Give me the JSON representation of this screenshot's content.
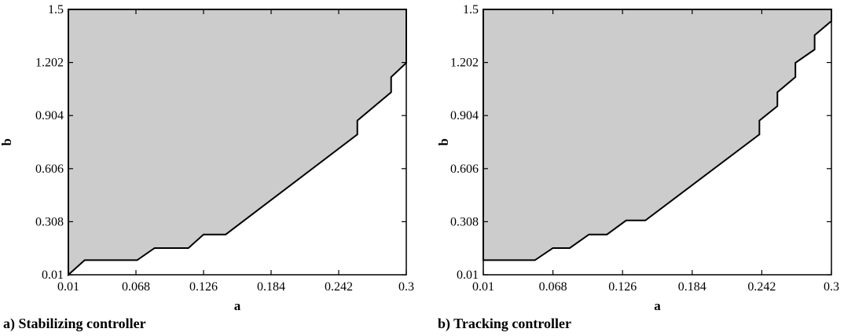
{
  "chart_data": [
    {
      "type": "area",
      "caption": "a) Stabilizing controller",
      "xlabel": "a",
      "ylabel": "b",
      "xlim": [
        0.01,
        0.3
      ],
      "ylim": [
        0.01,
        1.5
      ],
      "xticks": [
        "0.01",
        "0.068",
        "0.126",
        "0.184",
        "0.242",
        "0.3"
      ],
      "yticks": [
        "0.01",
        "0.308",
        "0.606",
        "0.904",
        "1.202",
        "1.5"
      ],
      "fill_color": "#cccccc",
      "boundary": {
        "x": [
          0.01,
          0.024,
          0.069,
          0.084,
          0.113,
          0.126,
          0.145,
          0.258,
          0.258,
          0.287,
          0.287,
          0.3,
          0.3
        ],
        "y": [
          0.01,
          0.092,
          0.092,
          0.16,
          0.16,
          0.236,
          0.236,
          0.798,
          0.876,
          1.035,
          1.12,
          1.2,
          1.5
        ]
      }
    },
    {
      "type": "area",
      "caption": "b) Tracking controller",
      "xlabel": "a",
      "ylabel": "b",
      "xlim": [
        0.01,
        0.3
      ],
      "ylim": [
        0.01,
        1.5
      ],
      "xticks": [
        "0.01",
        "0.068",
        "0.126",
        "0.184",
        "0.242",
        "0.3"
      ],
      "yticks": [
        "0.01",
        "0.308",
        "0.606",
        "0.904",
        "1.202",
        "1.5"
      ],
      "fill_color": "#cccccc",
      "boundary": {
        "x": [
          0.01,
          0.053,
          0.068,
          0.082,
          0.098,
          0.113,
          0.129,
          0.145,
          0.24,
          0.24,
          0.255,
          0.255,
          0.27,
          0.27,
          0.286,
          0.286,
          0.3,
          0.3
        ],
        "y": [
          0.092,
          0.092,
          0.16,
          0.16,
          0.236,
          0.236,
          0.315,
          0.315,
          0.798,
          0.876,
          0.957,
          1.035,
          1.12,
          1.2,
          1.275,
          1.355,
          1.435,
          1.5
        ]
      }
    }
  ]
}
